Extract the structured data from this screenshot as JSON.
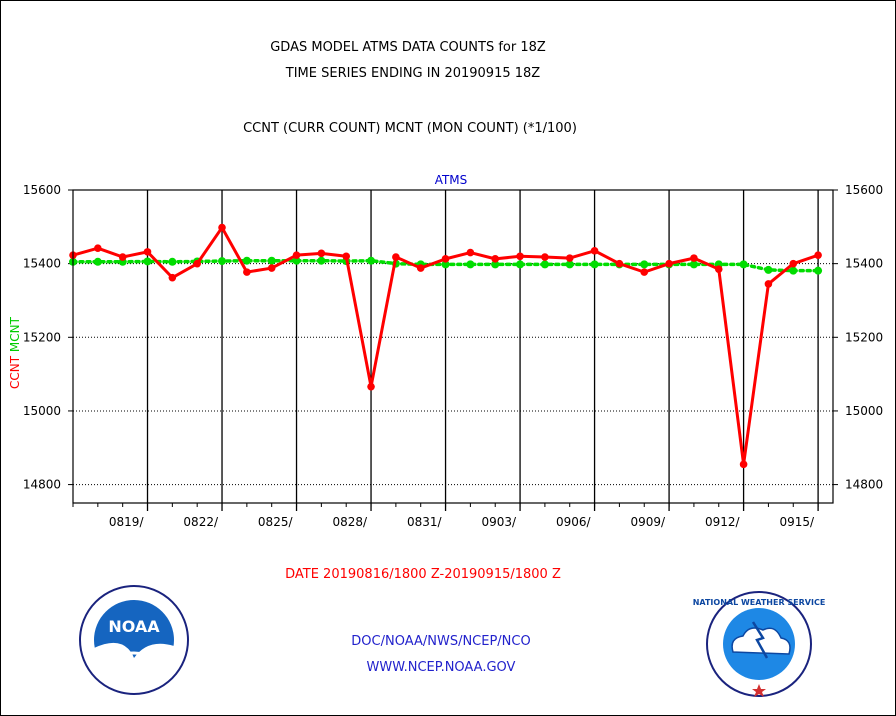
{
  "header": {
    "title_line1": "GDAS MODEL ATMS DATA COUNTS for 18Z",
    "title_line2": "TIME SERIES ENDING IN 20190915 18Z",
    "subtitle": "CCNT (CURR COUNT) MCNT (MON COUNT) (*1/100)"
  },
  "chart_data": {
    "type": "line",
    "title": "ATMS",
    "ylabel_series": [
      "CCNT",
      "MCNT"
    ],
    "xlabel": "DATE 20190816/1800 Z-20190915/1800 Z",
    "ylim": [
      14750,
      15600
    ],
    "yticks": [
      14800,
      15000,
      15200,
      15400,
      15600
    ],
    "x_day_range": [
      0,
      30.6
    ],
    "xtick_labels": [
      "0819/",
      "0822/",
      "0825/",
      "0828/",
      "0831/",
      "0903/",
      "0906/",
      "0909/",
      "0912/",
      "0915/"
    ],
    "xtick_days": [
      3,
      6,
      9,
      12,
      15,
      18,
      21,
      24,
      27,
      30
    ],
    "grid": true,
    "series": [
      {
        "name": "CCNT",
        "color": "#ff0000",
        "values": [
          15423,
          15442,
          15418,
          15432,
          15362,
          15400,
          15498,
          15377,
          15388,
          15423,
          15428,
          15420,
          15066,
          15418,
          15388,
          15413,
          15430,
          15413,
          15420,
          15418,
          15415,
          15435,
          15400,
          15377,
          15400,
          15415,
          15385,
          14855,
          15345,
          15400,
          15423
        ]
      },
      {
        "name": "MCNT",
        "color": "#00dd00",
        "values": [
          15405,
          15405,
          15405,
          15406,
          15405,
          15406,
          15407,
          15408,
          15408,
          15408,
          15408,
          15407,
          15408,
          15400,
          15398,
          15398,
          15398,
          15398,
          15398,
          15398,
          15398,
          15398,
          15398,
          15398,
          15398,
          15398,
          15398,
          15398,
          15383,
          15381,
          15381
        ]
      }
    ]
  },
  "footer": {
    "org_line1": "DOC/NOAA/NWS/NCEP/NCO",
    "org_line2": "WWW.NCEP.NOAA.GOV",
    "noaa_logo_text": "NOAA",
    "nws_logo_text": "NATIONAL WEATHER SERVICE"
  }
}
